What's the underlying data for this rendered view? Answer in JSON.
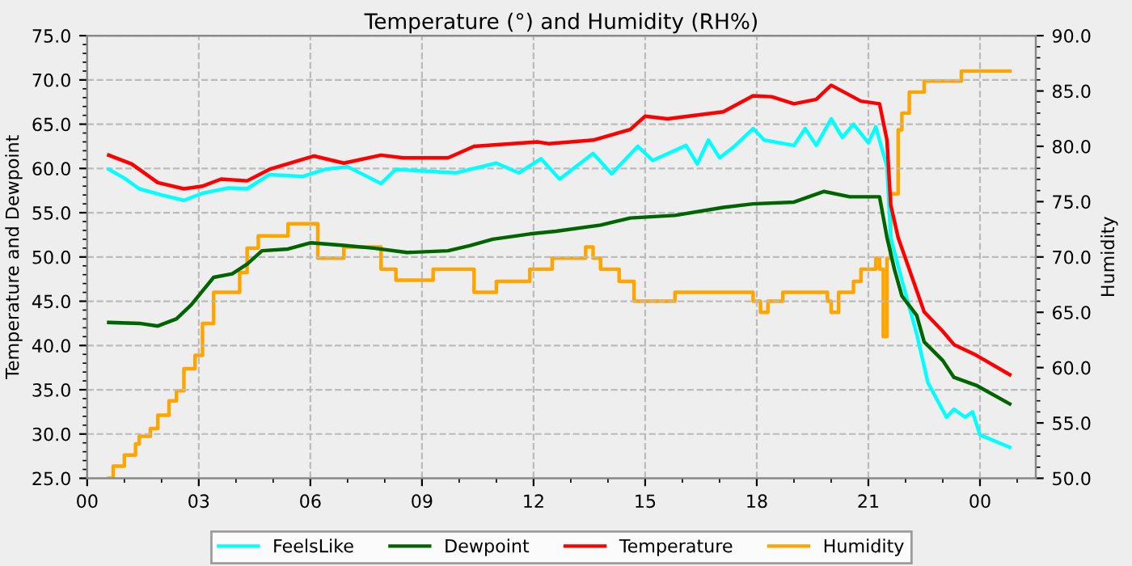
{
  "chart_data": {
    "type": "line",
    "title": "Temperature (°) and Humidity (RH%)",
    "ylabel": "Temperature and Dewpoint",
    "y2label": "Humidity",
    "xlim": [
      0,
      25.5
    ],
    "xticks": [
      {
        "value": 0,
        "label": "00"
      },
      {
        "value": 3,
        "label": "03"
      },
      {
        "value": 6,
        "label": "06"
      },
      {
        "value": 9,
        "label": "09"
      },
      {
        "value": 12,
        "label": "12"
      },
      {
        "value": 15,
        "label": "15"
      },
      {
        "value": 18,
        "label": "18"
      },
      {
        "value": 21,
        "label": "21"
      },
      {
        "value": 24,
        "label": "00"
      }
    ],
    "ylim": [
      25,
      75
    ],
    "yticks": [
      {
        "value": 25,
        "label": "25.0"
      },
      {
        "value": 30,
        "label": "30.0"
      },
      {
        "value": 35,
        "label": "35.0"
      },
      {
        "value": 40,
        "label": "40.0"
      },
      {
        "value": 45,
        "label": "45.0"
      },
      {
        "value": 50,
        "label": "50.0"
      },
      {
        "value": 55,
        "label": "55.0"
      },
      {
        "value": 60,
        "label": "60.0"
      },
      {
        "value": 65,
        "label": "65.0"
      },
      {
        "value": 70,
        "label": "70.0"
      },
      {
        "value": 75,
        "label": "75.0"
      }
    ],
    "y2lim": [
      50,
      90
    ],
    "y2ticks": [
      {
        "value": 50,
        "label": "50.0"
      },
      {
        "value": 55,
        "label": "55.0"
      },
      {
        "value": 60,
        "label": "60.0"
      },
      {
        "value": 65,
        "label": "65.0"
      },
      {
        "value": 70,
        "label": "70.0"
      },
      {
        "value": 75,
        "label": "75.0"
      },
      {
        "value": 80,
        "label": "80.0"
      },
      {
        "value": 85,
        "label": "85.0"
      },
      {
        "value": 90,
        "label": "90.0"
      }
    ],
    "grid": true,
    "legend": "bottom",
    "line_style": "solid",
    "marker": "none",
    "series": [
      {
        "name": "FeelsLike",
        "color": "#00ffff",
        "x": [
          0.58,
          1.0,
          1.4,
          2.0,
          2.6,
          3.1,
          3.8,
          4.3,
          4.9,
          5.8,
          6.4,
          7.0,
          7.9,
          8.3,
          9.9,
          11.0,
          11.6,
          12.2,
          12.7,
          13.6,
          14.1,
          14.8,
          15.2,
          16.1,
          16.4,
          16.7,
          17.0,
          17.4,
          17.9,
          18.2,
          19.0,
          19.3,
          19.6,
          20.0,
          20.3,
          20.6,
          21.0,
          21.2,
          21.5,
          21.6,
          21.9,
          22.3,
          22.6,
          23.1,
          23.3,
          23.6,
          23.8,
          24.0,
          24.8
        ],
        "values": [
          59.9,
          58.9,
          57.7,
          57.0,
          56.4,
          57.2,
          57.8,
          57.7,
          59.3,
          59.1,
          59.9,
          60.2,
          58.3,
          59.9,
          59.5,
          60.6,
          59.5,
          61.1,
          58.8,
          61.7,
          59.4,
          62.5,
          60.9,
          62.6,
          60.5,
          63.2,
          61.2,
          62.5,
          64.5,
          63.2,
          62.6,
          64.5,
          62.6,
          65.6,
          63.5,
          65.0,
          62.9,
          64.7,
          60.2,
          52.2,
          47.4,
          41.3,
          35.8,
          31.9,
          32.8,
          31.9,
          32.5,
          29.9,
          28.5
        ]
      },
      {
        "name": "Dewpoint",
        "color": "#006400",
        "x": [
          0.58,
          1.4,
          1.9,
          2.4,
          2.8,
          3.4,
          3.9,
          4.3,
          4.7,
          5.4,
          6.0,
          6.9,
          7.7,
          8.6,
          9.7,
          10.3,
          10.9,
          11.9,
          12.6,
          13.8,
          14.6,
          15.8,
          17.1,
          17.9,
          19.0,
          19.8,
          20.5,
          21.3,
          21.5,
          21.7,
          21.9,
          22.3,
          22.5,
          23.0,
          23.3,
          23.9,
          24.8
        ],
        "values": [
          42.6,
          42.5,
          42.2,
          43.0,
          44.6,
          47.7,
          48.1,
          49.2,
          50.7,
          50.9,
          51.6,
          51.3,
          51.0,
          50.5,
          50.7,
          51.3,
          52.0,
          52.6,
          52.9,
          53.6,
          54.4,
          54.7,
          55.6,
          56.0,
          56.2,
          57.4,
          56.8,
          56.8,
          52.2,
          48.6,
          45.6,
          43.4,
          40.4,
          38.3,
          36.4,
          35.5,
          33.4
        ]
      },
      {
        "name": "Temperature",
        "color": "#ff0000",
        "x": [
          0.58,
          1.2,
          1.9,
          2.6,
          3.1,
          3.6,
          4.3,
          4.9,
          6.1,
          6.9,
          7.9,
          8.5,
          9.7,
          10.4,
          12.1,
          12.4,
          13.6,
          14.6,
          15.0,
          15.6,
          17.1,
          17.9,
          18.4,
          19.0,
          19.6,
          20.0,
          20.8,
          21.3,
          21.5,
          21.6,
          21.8,
          22.2,
          22.5,
          23.0,
          23.3,
          23.9,
          24.8
        ],
        "values": [
          61.5,
          60.5,
          58.4,
          57.7,
          58.0,
          58.8,
          58.6,
          59.9,
          61.4,
          60.6,
          61.5,
          61.2,
          61.2,
          62.5,
          63.0,
          62.8,
          63.2,
          64.4,
          65.9,
          65.6,
          66.4,
          68.2,
          68.1,
          67.3,
          67.8,
          69.4,
          67.6,
          67.3,
          63.2,
          55.9,
          52.2,
          47.4,
          43.8,
          41.6,
          40.1,
          38.9,
          36.7
        ]
      },
      {
        "name": "Humidity",
        "color": "#ffa500",
        "type": "step",
        "axis": "y2",
        "x": [
          0.58,
          0.7,
          1.0,
          1.3,
          1.4,
          1.7,
          1.9,
          2.2,
          2.4,
          2.6,
          2.9,
          3.1,
          3.4,
          3.9,
          4.1,
          4.3,
          4.6,
          5.4,
          5.9,
          6.2,
          6.9,
          7.0,
          7.7,
          7.9,
          8.3,
          9.3,
          9.9,
          10.4,
          11.0,
          11.1,
          11.9,
          12.0,
          12.5,
          13.4,
          13.6,
          13.8,
          14.3,
          14.7,
          15.4,
          15.8,
          16.7,
          17.9,
          18.1,
          18.3,
          18.7,
          19.6,
          19.9,
          20.0,
          20.2,
          20.6,
          20.8,
          21.2,
          21.3,
          21.4,
          21.5,
          21.6,
          21.8,
          21.9,
          22.1,
          22.5,
          23.4,
          23.5,
          24.1,
          24.8
        ],
        "values": [
          50.0,
          51.1,
          52.1,
          53.1,
          53.8,
          54.5,
          55.7,
          57.0,
          57.9,
          59.9,
          61.1,
          64.0,
          66.8,
          66.8,
          68.6,
          70.8,
          71.9,
          73.0,
          73.0,
          69.9,
          70.9,
          70.9,
          70.9,
          68.9,
          67.9,
          68.9,
          68.9,
          66.8,
          67.8,
          67.8,
          68.9,
          68.9,
          69.9,
          70.9,
          69.9,
          68.9,
          67.8,
          66.0,
          66.0,
          66.8,
          66.8,
          66.0,
          65.0,
          66.0,
          66.8,
          66.8,
          66.0,
          65.0,
          66.8,
          67.8,
          68.9,
          69.9,
          68.9,
          62.8,
          69.9,
          75.7,
          81.5,
          83.0,
          84.9,
          85.9,
          85.9,
          86.8,
          86.8,
          86.8
        ]
      }
    ]
  }
}
